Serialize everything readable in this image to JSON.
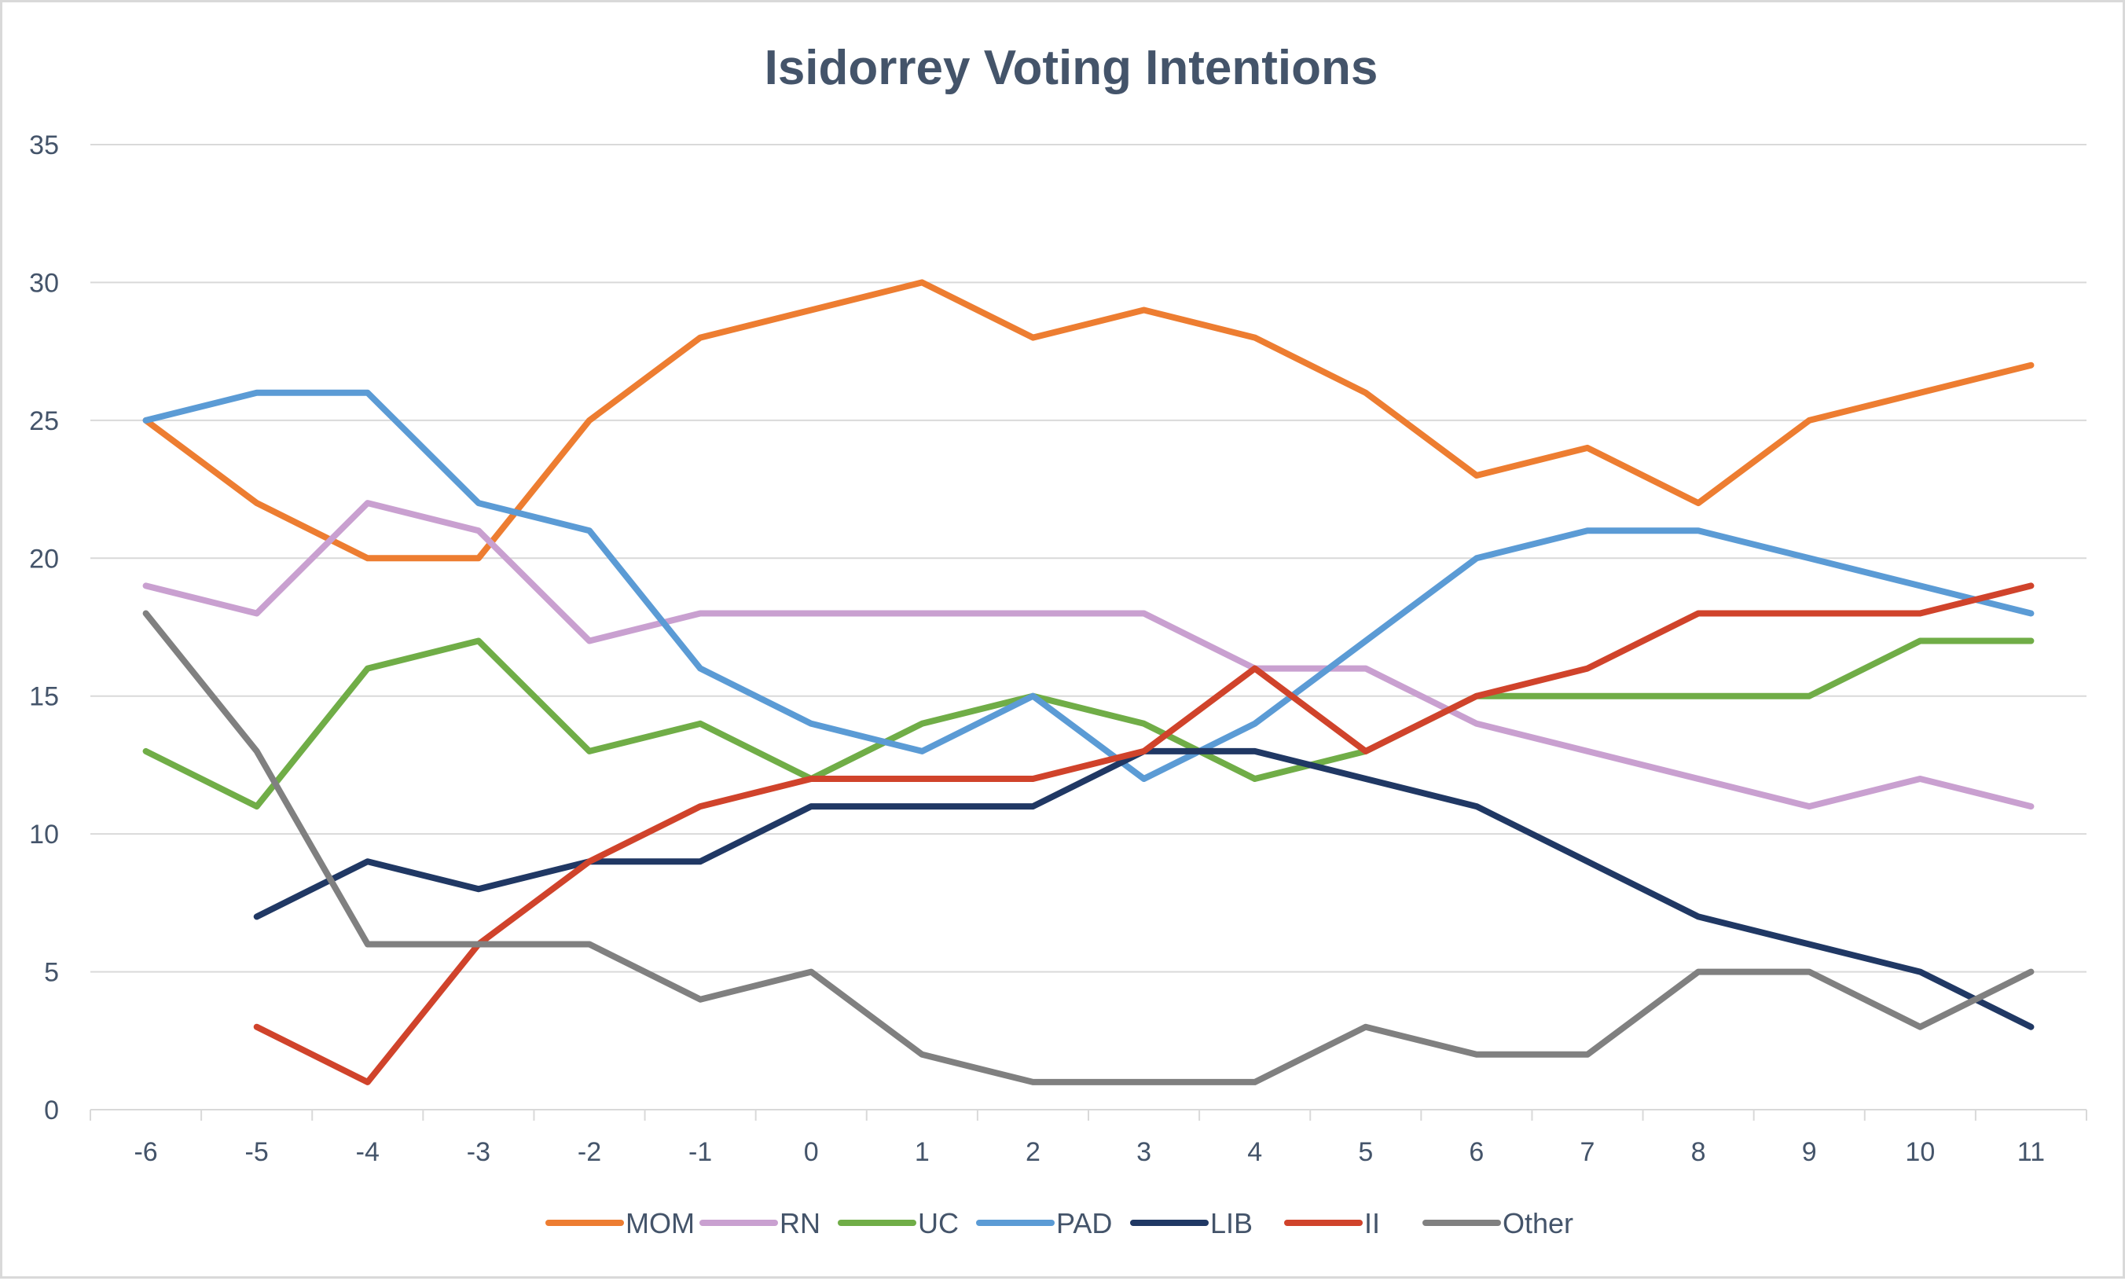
{
  "chart_data": {
    "type": "line",
    "title": "Isidorrey Voting Intentions",
    "xlabel": "",
    "ylabel": "",
    "categories": [
      "-6",
      "-5",
      "-4",
      "-3",
      "-2",
      "-1",
      "0",
      "1",
      "2",
      "3",
      "4",
      "5",
      "6",
      "7",
      "8",
      "9",
      "10",
      "11"
    ],
    "ylim": [
      0,
      35
    ],
    "yticks": [
      0,
      5,
      10,
      15,
      20,
      25,
      30,
      35
    ],
    "grid": true,
    "legend_position": "bottom",
    "series": [
      {
        "name": "MOM",
        "color": "#ed7d31",
        "values": [
          25,
          22,
          20,
          20,
          25,
          28,
          29,
          30,
          28,
          29,
          28,
          26,
          23,
          24,
          22,
          25,
          26,
          27
        ]
      },
      {
        "name": "RN",
        "color": "#c9a0d0",
        "values": [
          19,
          18,
          22,
          21,
          17,
          18,
          18,
          18,
          18,
          18,
          16,
          16,
          14,
          13,
          12,
          11,
          12,
          11
        ]
      },
      {
        "name": "UC",
        "color": "#70ad47",
        "values": [
          13,
          11,
          16,
          17,
          13,
          14,
          12,
          14,
          15,
          14,
          12,
          13,
          15,
          15,
          15,
          15,
          17,
          17
        ]
      },
      {
        "name": "PAD",
        "color": "#5b9bd5",
        "values": [
          25,
          26,
          26,
          22,
          21,
          16,
          14,
          13,
          15,
          12,
          14,
          17,
          20,
          21,
          21,
          20,
          19,
          18
        ]
      },
      {
        "name": "LIB",
        "color": "#203864",
        "values": [
          null,
          7,
          9,
          8,
          9,
          9,
          11,
          11,
          11,
          13,
          13,
          12,
          11,
          9,
          7,
          6,
          5,
          3
        ]
      },
      {
        "name": "II",
        "color": "#d0432b",
        "values": [
          null,
          3,
          1,
          6,
          9,
          11,
          12,
          12,
          12,
          13,
          16,
          13,
          15,
          16,
          18,
          18,
          18,
          19
        ]
      },
      {
        "name": "Other",
        "color": "#808080",
        "values": [
          18,
          13,
          6,
          6,
          6,
          4,
          5,
          2,
          1,
          1,
          1,
          3,
          2,
          2,
          5,
          5,
          3,
          5
        ]
      }
    ]
  }
}
